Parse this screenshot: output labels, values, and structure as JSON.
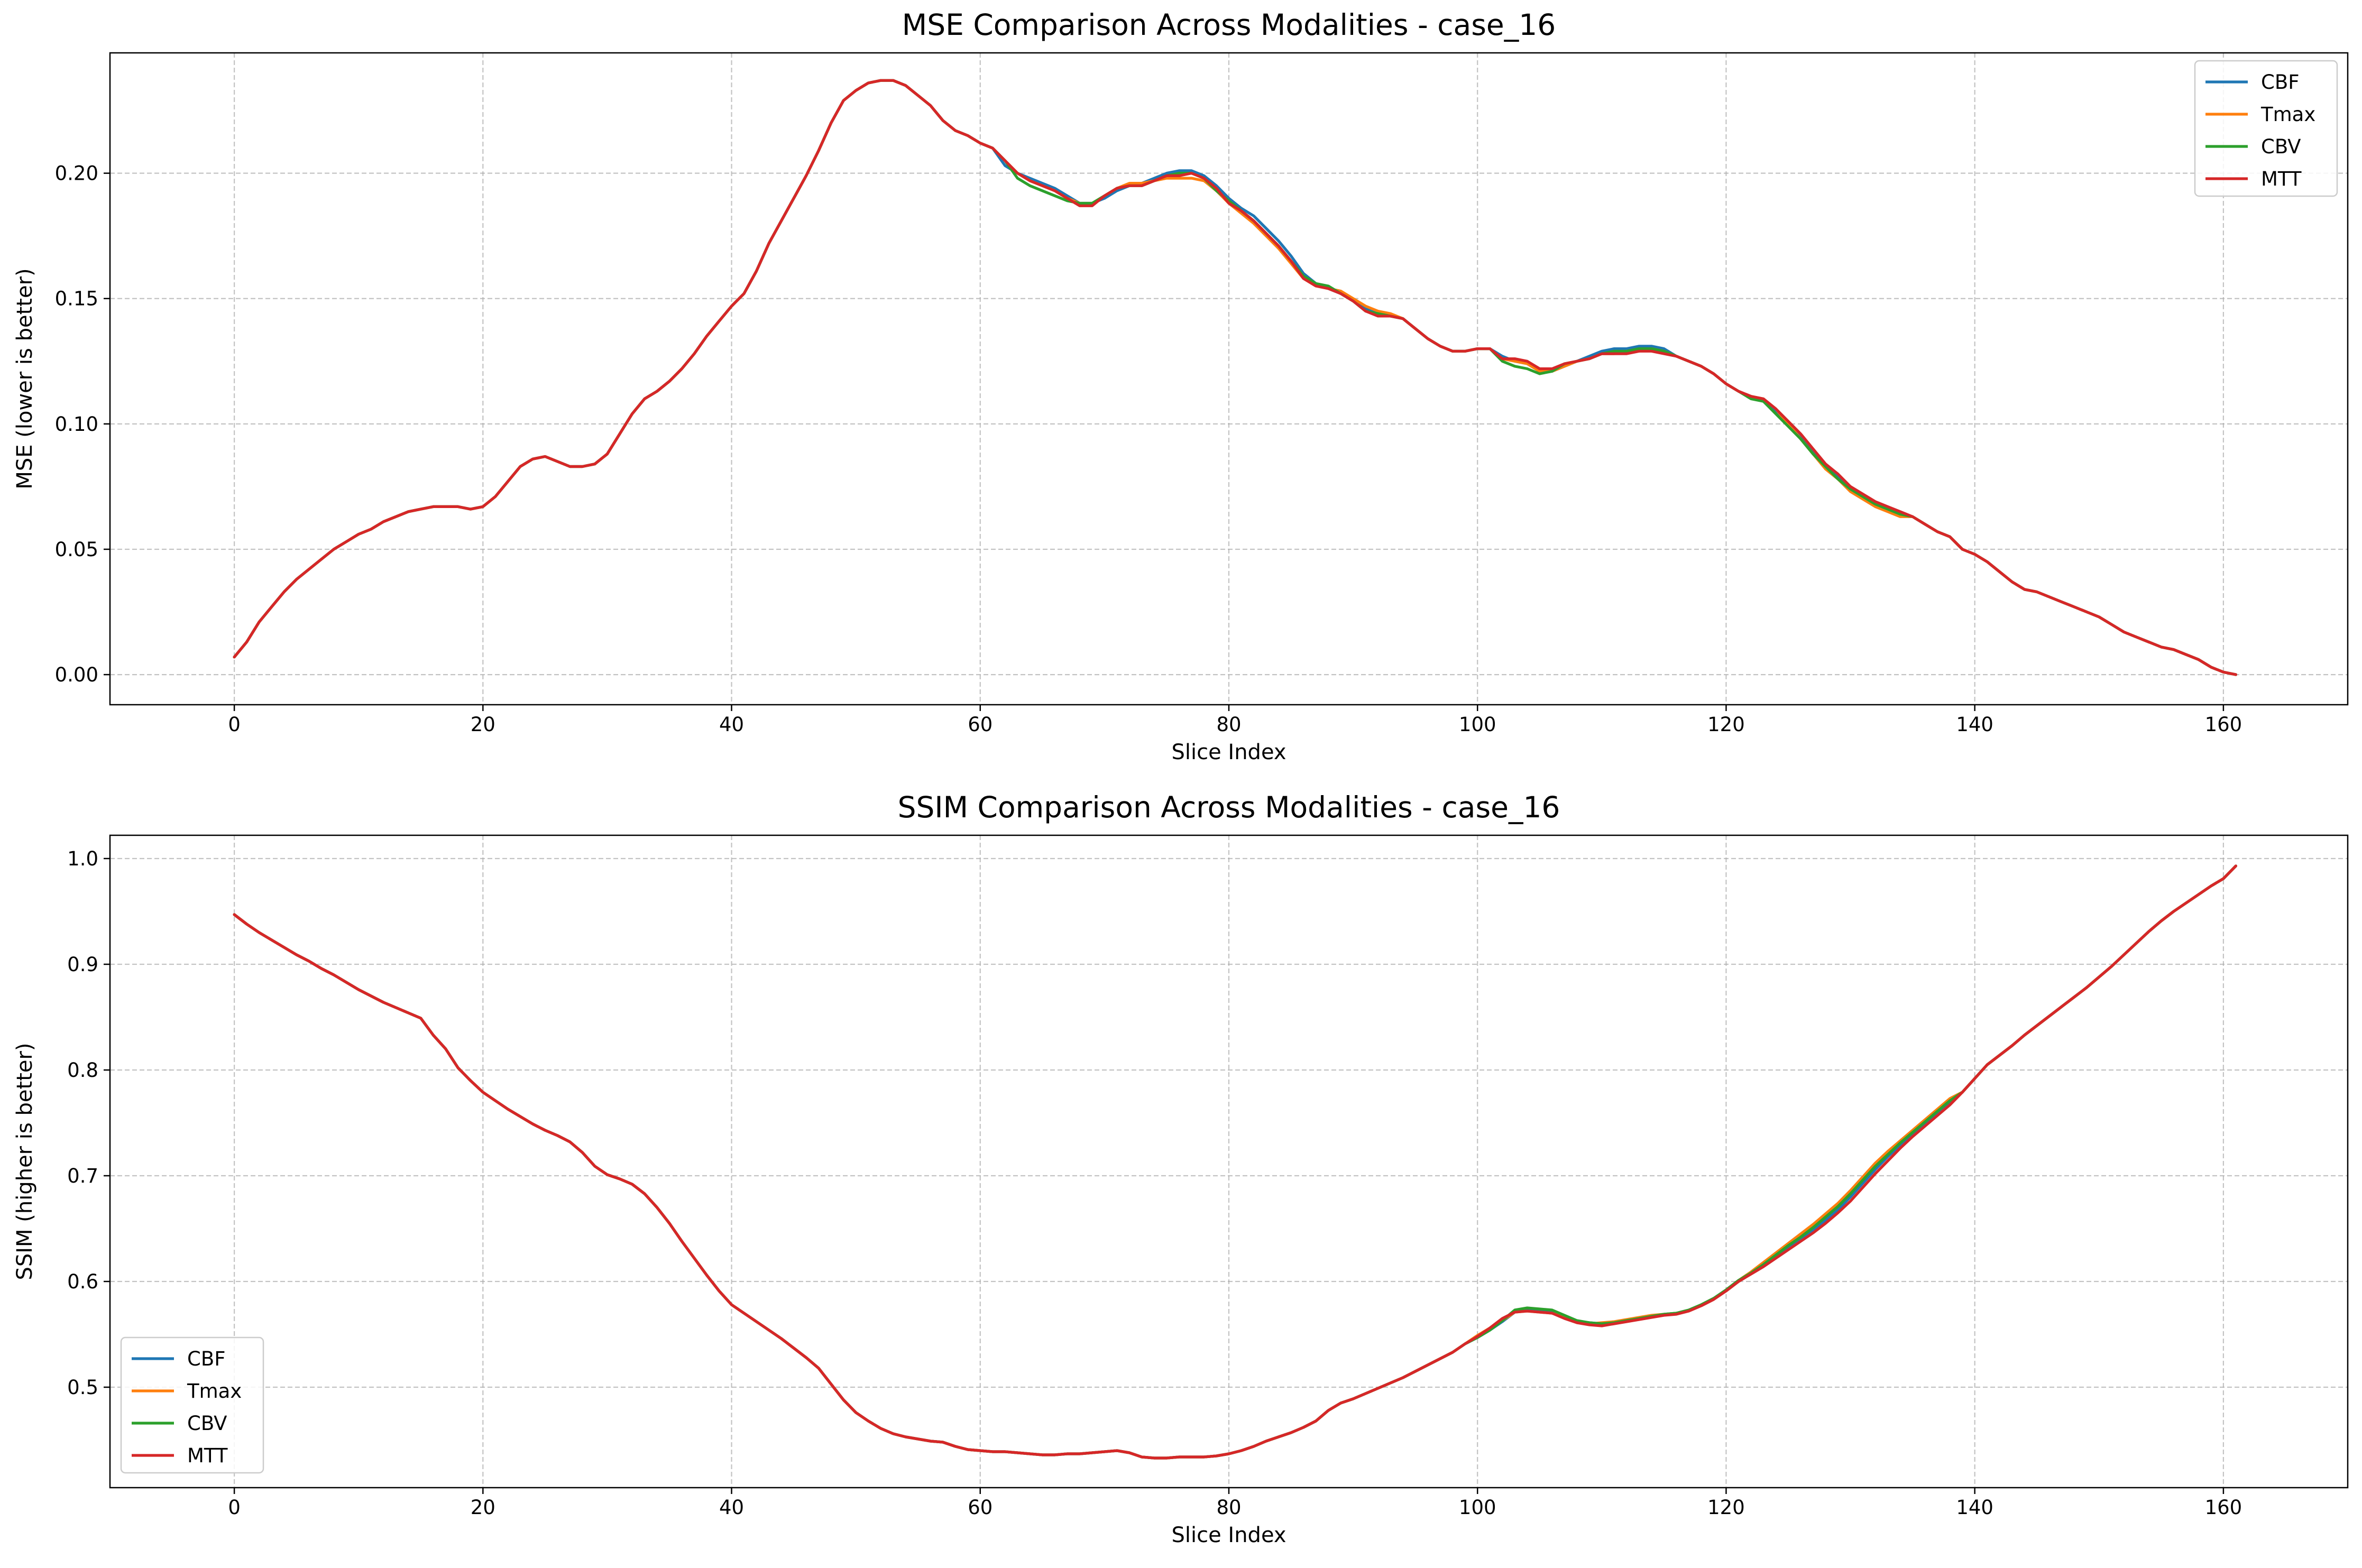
{
  "chart_data": [
    {
      "type": "line",
      "title": "MSE Comparison Across Modalities - case_16",
      "xlabel": "Slice Index",
      "ylabel": "MSE (lower is better)",
      "xlim": [
        -10,
        170
      ],
      "ylim": [
        -0.012,
        0.248
      ],
      "xticks": [
        0,
        20,
        40,
        60,
        80,
        100,
        120,
        140,
        160
      ],
      "xtick_labels": [
        "0",
        "20",
        "40",
        "60",
        "80",
        "100",
        "120",
        "140",
        "160"
      ],
      "yticks": [
        0.0,
        0.05,
        0.1,
        0.15,
        0.2
      ],
      "ytick_labels": [
        "0.00",
        "0.05",
        "0.10",
        "0.15",
        "0.20"
      ],
      "grid": true,
      "legend_position": "top-right",
      "series": [
        {
          "name": "CBF",
          "color": "#1f77b4"
        },
        {
          "name": "Tmax",
          "color": "#ff7f0e"
        },
        {
          "name": "CBV",
          "color": "#2ca02c"
        },
        {
          "name": "MTT",
          "color": "#d62728"
        }
      ],
      "x": [
        0,
        1,
        2,
        3,
        4,
        5,
        6,
        7,
        8,
        9,
        10,
        11,
        12,
        13,
        14,
        15,
        16,
        17,
        18,
        19,
        20,
        21,
        22,
        23,
        24,
        25,
        26,
        27,
        28,
        29,
        30,
        31,
        32,
        33,
        34,
        35,
        36,
        37,
        38,
        39,
        40,
        41,
        42,
        43,
        44,
        45,
        46,
        47,
        48,
        49,
        50,
        51,
        52,
        53,
        54,
        55,
        56,
        57,
        58,
        59,
        60,
        61,
        62,
        63,
        64,
        65,
        66,
        67,
        68,
        69,
        70,
        71,
        72,
        73,
        74,
        75,
        76,
        77,
        78,
        79,
        80,
        81,
        82,
        83,
        84,
        85,
        86,
        87,
        88,
        89,
        90,
        91,
        92,
        93,
        94,
        95,
        96,
        97,
        98,
        99,
        100,
        101,
        102,
        103,
        104,
        105,
        106,
        107,
        108,
        109,
        110,
        111,
        112,
        113,
        114,
        115,
        116,
        117,
        118,
        119,
        120,
        121,
        122,
        123,
        124,
        125,
        126,
        127,
        128,
        129,
        130,
        131,
        132,
        133,
        134,
        135,
        136,
        137,
        138,
        139,
        140,
        141,
        142,
        143,
        144,
        145,
        146,
        147,
        148,
        149,
        150,
        151,
        152,
        153,
        154,
        155,
        156,
        157,
        158,
        159,
        160,
        161
      ],
      "base_values": [
        0.007,
        0.013,
        0.021,
        0.027,
        0.033,
        0.038,
        0.042,
        0.046,
        0.05,
        0.053,
        0.056,
        0.058,
        0.061,
        0.063,
        0.065,
        0.066,
        0.067,
        0.067,
        0.067,
        0.066,
        0.067,
        0.071,
        0.077,
        0.083,
        0.086,
        0.087,
        0.085,
        0.083,
        0.083,
        0.084,
        0.088,
        0.096,
        0.104,
        0.11,
        0.113,
        0.117,
        0.122,
        0.128,
        0.135,
        0.141,
        0.147,
        0.152,
        0.161,
        0.172,
        0.181,
        0.19,
        0.199,
        0.209,
        0.22,
        0.229,
        0.233,
        0.236,
        0.237,
        0.237,
        0.235,
        0.231,
        0.227,
        0.221,
        0.217,
        0.215,
        0.212,
        0.21,
        0.205,
        0.2,
        0.197,
        0.195,
        0.193,
        0.19,
        0.187,
        0.187,
        0.191,
        0.194,
        0.195,
        0.195,
        0.197,
        0.199,
        0.199,
        0.2,
        0.198,
        0.194,
        0.188,
        0.185,
        0.181,
        0.176,
        0.171,
        0.165,
        0.158,
        0.155,
        0.154,
        0.152,
        0.149,
        0.145,
        0.143,
        0.143,
        0.142,
        0.138,
        0.134,
        0.131,
        0.129,
        0.129,
        0.13,
        0.13,
        0.126,
        0.126,
        0.125,
        0.122,
        0.122,
        0.124,
        0.125,
        0.126,
        0.128,
        0.128,
        0.128,
        0.129,
        0.129,
        0.128,
        0.127,
        0.125,
        0.123,
        0.12,
        0.116,
        0.113,
        0.111,
        0.11,
        0.106,
        0.101,
        0.096,
        0.09,
        0.084,
        0.08,
        0.075,
        0.072,
        0.069,
        0.067,
        0.065,
        0.063,
        0.06,
        0.057,
        0.055,
        0.05,
        0.048,
        0.045,
        0.041,
        0.037,
        0.034,
        0.033,
        0.031,
        0.029,
        0.027,
        0.025,
        0.023,
        0.02,
        0.017,
        0.015,
        0.013,
        0.011,
        0.01,
        0.008,
        0.006,
        0.003,
        0.001,
        0.0
      ],
      "deviations": [
        {
          "series": "CBF",
          "start_x": 62,
          "values": [
            0.203,
            0.2,
            0.198,
            0.196,
            0.194,
            0.191,
            0.188,
            0.188,
            0.19,
            0.193,
            0.195,
            0.196,
            0.198,
            0.2,
            0.201,
            0.201,
            0.199,
            0.195,
            0.19,
            0.186,
            0.183,
            0.178,
            0.173,
            0.167,
            0.16,
            0.156,
            0.154,
            0.152,
            0.149,
            0.146,
            0.144,
            0.143,
            0.142,
            0.138,
            0.134,
            0.131,
            0.129,
            0.129,
            0.13,
            0.13,
            0.127,
            0.125,
            0.124,
            0.121,
            0.121,
            0.123,
            0.125,
            0.127,
            0.129,
            0.13,
            0.13,
            0.131,
            0.131,
            0.13,
            0.127,
            0.125,
            0.123,
            0.12,
            0.116,
            0.113,
            0.111,
            0.109,
            0.105,
            0.1,
            0.095,
            0.089,
            0.083,
            0.079,
            0.074,
            0.071,
            0.068,
            0.066,
            0.064
          ]
        },
        {
          "series": "Tmax",
          "start_x": 62,
          "values": [
            0.205,
            0.2,
            0.197,
            0.195,
            0.193,
            0.19,
            0.188,
            0.188,
            0.191,
            0.194,
            0.196,
            0.196,
            0.197,
            0.198,
            0.198,
            0.198,
            0.197,
            0.193,
            0.188,
            0.184,
            0.18,
            0.175,
            0.17,
            0.164,
            0.158,
            0.155,
            0.154,
            0.153,
            0.15,
            0.147,
            0.145,
            0.144,
            0.142,
            0.138,
            0.134,
            0.131,
            0.129,
            0.129,
            0.13,
            0.13,
            0.126,
            0.125,
            0.124,
            0.121,
            0.121,
            0.123,
            0.125,
            0.126,
            0.128,
            0.128,
            0.129,
            0.129,
            0.13,
            0.129,
            0.127,
            0.125,
            0.123,
            0.12,
            0.116,
            0.113,
            0.111,
            0.11,
            0.106,
            0.1,
            0.094,
            0.088,
            0.082,
            0.078,
            0.073,
            0.07,
            0.067,
            0.065,
            0.063
          ]
        },
        {
          "series": "CBV",
          "start_x": 62,
          "values": [
            0.205,
            0.198,
            0.195,
            0.193,
            0.191,
            0.189,
            0.188,
            0.188,
            0.191,
            0.194,
            0.195,
            0.195,
            0.197,
            0.199,
            0.2,
            0.2,
            0.198,
            0.193,
            0.189,
            0.185,
            0.181,
            0.176,
            0.171,
            0.165,
            0.159,
            0.156,
            0.155,
            0.152,
            0.149,
            0.145,
            0.144,
            0.143,
            0.142,
            0.138,
            0.134,
            0.131,
            0.129,
            0.129,
            0.13,
            0.13,
            0.125,
            0.123,
            0.122,
            0.12,
            0.121,
            0.124,
            0.125,
            0.126,
            0.128,
            0.129,
            0.129,
            0.13,
            0.13,
            0.129,
            0.127,
            0.125,
            0.123,
            0.12,
            0.116,
            0.113,
            0.11,
            0.109,
            0.104,
            0.099,
            0.094,
            0.088,
            0.083,
            0.078,
            0.074,
            0.071,
            0.068,
            0.066,
            0.064
          ]
        }
      ]
    },
    {
      "type": "line",
      "title": "SSIM Comparison Across Modalities - case_16",
      "xlabel": "Slice Index",
      "ylabel": "SSIM (higher is better)",
      "xlim": [
        -10,
        170
      ],
      "ylim": [
        0.405,
        1.022
      ],
      "xticks": [
        0,
        20,
        40,
        60,
        80,
        100,
        120,
        140,
        160
      ],
      "xtick_labels": [
        "0",
        "20",
        "40",
        "60",
        "80",
        "100",
        "120",
        "140",
        "160"
      ],
      "yticks": [
        0.5,
        0.6,
        0.7,
        0.8,
        0.9,
        1.0
      ],
      "ytick_labels": [
        "0.5",
        "0.6",
        "0.7",
        "0.8",
        "0.9",
        "1.0"
      ],
      "grid": true,
      "legend_position": "bottom-left",
      "series": [
        {
          "name": "CBF",
          "color": "#1f77b4"
        },
        {
          "name": "Tmax",
          "color": "#ff7f0e"
        },
        {
          "name": "CBV",
          "color": "#2ca02c"
        },
        {
          "name": "MTT",
          "color": "#d62728"
        }
      ],
      "x": [
        0,
        1,
        2,
        3,
        4,
        5,
        6,
        7,
        8,
        9,
        10,
        11,
        12,
        13,
        14,
        15,
        16,
        17,
        18,
        19,
        20,
        21,
        22,
        23,
        24,
        25,
        26,
        27,
        28,
        29,
        30,
        31,
        32,
        33,
        34,
        35,
        36,
        37,
        38,
        39,
        40,
        41,
        42,
        43,
        44,
        45,
        46,
        47,
        48,
        49,
        50,
        51,
        52,
        53,
        54,
        55,
        56,
        57,
        58,
        59,
        60,
        61,
        62,
        63,
        64,
        65,
        66,
        67,
        68,
        69,
        70,
        71,
        72,
        73,
        74,
        75,
        76,
        77,
        78,
        79,
        80,
        81,
        82,
        83,
        84,
        85,
        86,
        87,
        88,
        89,
        90,
        91,
        92,
        93,
        94,
        95,
        96,
        97,
        98,
        99,
        100,
        101,
        102,
        103,
        104,
        105,
        106,
        107,
        108,
        109,
        110,
        111,
        112,
        113,
        114,
        115,
        116,
        117,
        118,
        119,
        120,
        121,
        122,
        123,
        124,
        125,
        126,
        127,
        128,
        129,
        130,
        131,
        132,
        133,
        134,
        135,
        136,
        137,
        138,
        139,
        140,
        141,
        142,
        143,
        144,
        145,
        146,
        147,
        148,
        149,
        150,
        151,
        152,
        153,
        154,
        155,
        156,
        157,
        158,
        159,
        160,
        161
      ],
      "base_values": [
        0.947,
        0.938,
        0.93,
        0.923,
        0.916,
        0.909,
        0.903,
        0.896,
        0.89,
        0.883,
        0.876,
        0.87,
        0.864,
        0.859,
        0.854,
        0.849,
        0.833,
        0.82,
        0.802,
        0.79,
        0.779,
        0.771,
        0.763,
        0.756,
        0.749,
        0.743,
        0.738,
        0.732,
        0.722,
        0.709,
        0.701,
        0.697,
        0.692,
        0.683,
        0.67,
        0.655,
        0.638,
        0.622,
        0.606,
        0.591,
        0.578,
        0.57,
        0.562,
        0.554,
        0.546,
        0.537,
        0.528,
        0.518,
        0.503,
        0.488,
        0.476,
        0.468,
        0.461,
        0.456,
        0.453,
        0.451,
        0.449,
        0.448,
        0.444,
        0.441,
        0.44,
        0.439,
        0.439,
        0.438,
        0.437,
        0.436,
        0.436,
        0.437,
        0.437,
        0.438,
        0.439,
        0.44,
        0.438,
        0.434,
        0.433,
        0.433,
        0.434,
        0.434,
        0.434,
        0.435,
        0.437,
        0.44,
        0.444,
        0.449,
        0.453,
        0.457,
        0.462,
        0.468,
        0.478,
        0.485,
        0.489,
        0.494,
        0.499,
        0.504,
        0.509,
        0.515,
        0.521,
        0.527,
        0.533,
        0.541,
        0.548,
        0.556,
        0.565,
        0.571,
        0.572,
        0.571,
        0.57,
        0.565,
        0.561,
        0.559,
        0.558,
        0.56,
        0.562,
        0.564,
        0.566,
        0.568,
        0.569,
        0.572,
        0.577,
        0.583,
        0.591,
        0.6,
        0.607,
        0.614,
        0.622,
        0.63,
        0.638,
        0.646,
        0.655,
        0.665,
        0.676,
        0.689,
        0.702,
        0.714,
        0.726,
        0.737,
        0.747,
        0.757,
        0.767,
        0.779,
        0.792,
        0.805,
        0.814,
        0.823,
        0.833,
        0.842,
        0.851,
        0.86,
        0.869,
        0.878,
        0.888,
        0.898,
        0.909,
        0.92,
        0.931,
        0.941,
        0.95,
        0.958,
        0.966,
        0.974,
        0.981,
        0.993
      ],
      "deviations": [
        {
          "series": "CBF",
          "start_x": 100,
          "values": [
            0.547,
            0.554,
            0.562,
            0.571,
            0.573,
            0.572,
            0.571,
            0.566,
            0.562,
            0.561,
            0.56,
            0.561,
            0.563,
            0.565,
            0.567,
            0.569,
            0.57,
            0.573,
            0.578,
            0.584,
            0.592,
            0.601,
            0.608,
            0.616,
            0.624,
            0.633,
            0.641,
            0.649,
            0.658,
            0.668,
            0.68,
            0.693,
            0.706,
            0.718,
            0.729,
            0.739,
            0.749,
            0.759,
            0.769
          ]
        },
        {
          "series": "Tmax",
          "start_x": 100,
          "values": [
            0.549,
            0.556,
            0.563,
            0.571,
            0.572,
            0.571,
            0.57,
            0.566,
            0.561,
            0.56,
            0.561,
            0.562,
            0.564,
            0.566,
            0.568,
            0.569,
            0.57,
            0.573,
            0.578,
            0.584,
            0.592,
            0.601,
            0.609,
            0.618,
            0.627,
            0.636,
            0.645,
            0.654,
            0.664,
            0.674,
            0.686,
            0.699,
            0.712,
            0.723,
            0.733,
            0.743,
            0.753,
            0.763,
            0.773
          ]
        },
        {
          "series": "CBV",
          "start_x": 100,
          "values": [
            0.547,
            0.554,
            0.563,
            0.573,
            0.575,
            0.574,
            0.573,
            0.568,
            0.563,
            0.561,
            0.56,
            0.561,
            0.563,
            0.565,
            0.567,
            0.569,
            0.57,
            0.573,
            0.578,
            0.584,
            0.592,
            0.601,
            0.608,
            0.616,
            0.625,
            0.634,
            0.642,
            0.651,
            0.661,
            0.671,
            0.683,
            0.696,
            0.709,
            0.72,
            0.731,
            0.741,
            0.751,
            0.761,
            0.771
          ]
        }
      ]
    }
  ]
}
